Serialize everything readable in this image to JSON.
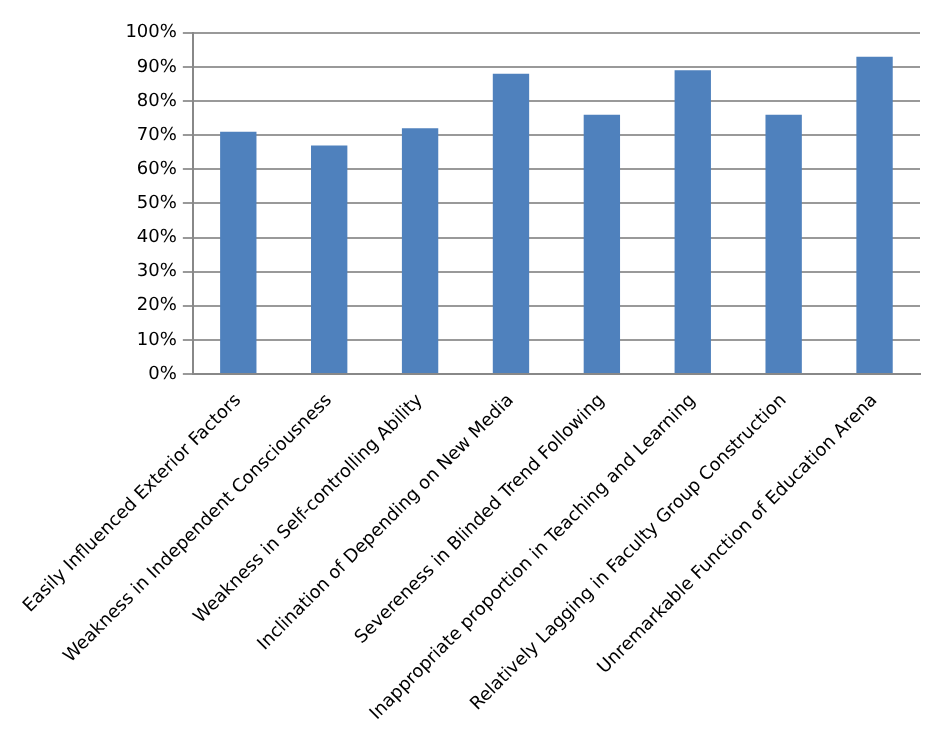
{
  "chart_data": {
    "type": "bar",
    "categories": [
      "Easily Influenced Exterior Factors",
      "Weakness in Independent Consciousness",
      "Weakness in Self-controlling Ability",
      "Inclination of Depending on New Media",
      "Severeness in Blinded Trend Following",
      "Inappropriate proportion in Teaching and Learning",
      "Relatively Lagging in Faculty Group Construction",
      "Unremarkable Function of Education Arena"
    ],
    "values": [
      71,
      67,
      72,
      88,
      76,
      89,
      76,
      93
    ],
    "color": "#4f81bd",
    "ylim": [
      0,
      100
    ],
    "yticks": [
      {
        "value": 0,
        "label": "0%"
      },
      {
        "value": 10,
        "label": "10%"
      },
      {
        "value": 20,
        "label": "20%"
      },
      {
        "value": 30,
        "label": "30%"
      },
      {
        "value": 40,
        "label": "40%"
      },
      {
        "value": 50,
        "label": "50%"
      },
      {
        "value": 60,
        "label": "60%"
      },
      {
        "value": 70,
        "label": "70%"
      },
      {
        "value": 80,
        "label": "80%"
      },
      {
        "value": 90,
        "label": "90%"
      },
      {
        "value": 100,
        "label": "100%"
      }
    ],
    "grid": "y",
    "legend": false
  }
}
